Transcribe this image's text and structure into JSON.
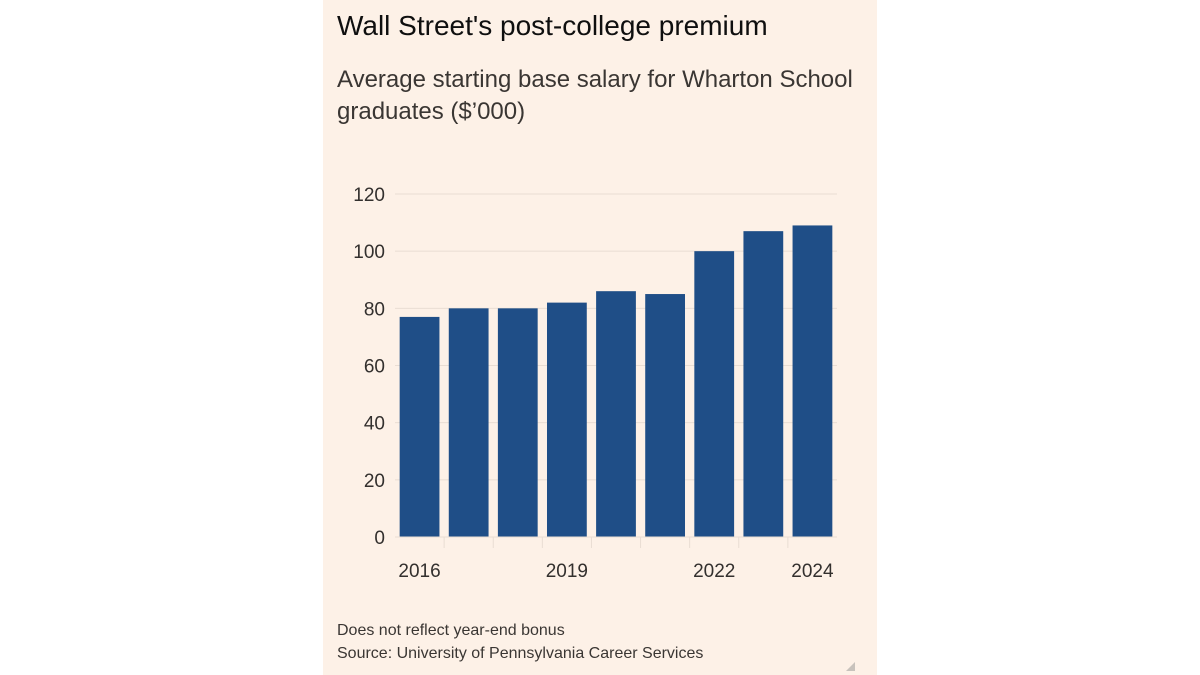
{
  "colors": {
    "background": "#fdf1e7",
    "bar": "#1f4e87",
    "gridline": "#e9ddd3",
    "text": "#33302e"
  },
  "chart_data": {
    "type": "bar",
    "title": "Wall Street's post-college premium",
    "subtitle": "Average starting base salary for Wharton School graduates ($’000)",
    "categories": [
      "2016",
      "2017",
      "2018",
      "2019",
      "2020",
      "2021",
      "2022",
      "2023",
      "2024"
    ],
    "x_tick_labels": [
      "2016",
      "",
      "",
      "2019",
      "",
      "",
      "2022",
      "",
      "2024"
    ],
    "values": [
      77,
      80,
      80,
      82,
      86,
      85,
      100,
      107,
      109
    ],
    "ylim": [
      0,
      120
    ],
    "yticks": [
      0,
      20,
      40,
      60,
      80,
      100,
      120
    ],
    "grid": true,
    "note": "Does not reflect year-end bonus",
    "source": "Source: University of Pennsylvania Career Services"
  }
}
